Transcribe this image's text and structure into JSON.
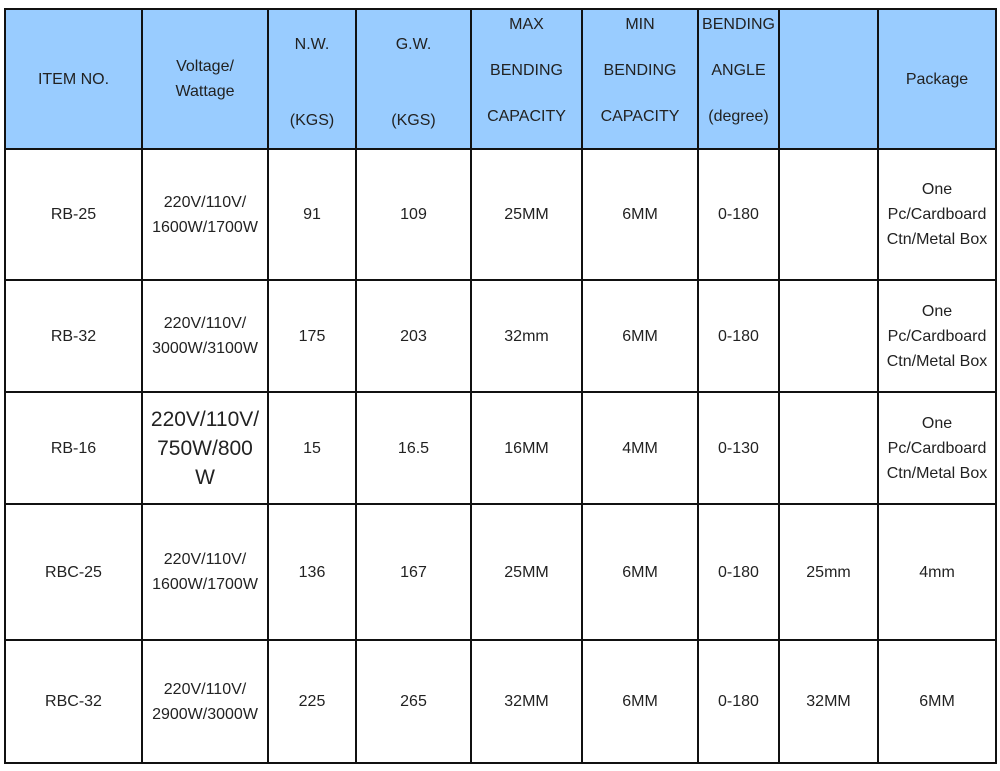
{
  "header": {
    "item_no": "ITEM NO.",
    "voltage": [
      "Voltage/",
      "Wattage"
    ],
    "nw": [
      "N.W.",
      "(KGS)"
    ],
    "gw": [
      "G.W.",
      "(KGS)"
    ],
    "max_bending": [
      "MAX",
      "BENDING",
      "CAPACITY"
    ],
    "min_bending": [
      "MIN",
      "BENDING",
      "CAPACITY"
    ],
    "bending_angle": [
      "BENDING",
      "ANGLE",
      "(degree)"
    ],
    "blank": "",
    "package": "Package"
  },
  "header_color": "#99ccff",
  "rows": [
    {
      "item": "RB-25",
      "voltage": [
        "220V/110V/",
        "1600W/1700W"
      ],
      "nw": "91",
      "gw": "109",
      "max": "25MM",
      "min": "6MM",
      "angle": "0-180",
      "extra": "",
      "package": [
        "One",
        "Pc/Cardboard",
        "Ctn/Metal Box"
      ]
    },
    {
      "item": "RB-32",
      "voltage": [
        "220V/110V/",
        "3000W/3100W"
      ],
      "nw": "175",
      "gw": "203",
      "max": "32mm",
      "min": "6MM",
      "angle": "0-180",
      "extra": "",
      "package": [
        "One",
        "Pc/Cardboard",
        "Ctn/Metal Box"
      ]
    },
    {
      "item": "RB-16",
      "voltage": [
        "220V/110V/",
        "750W/800",
        "W"
      ],
      "nw": "15",
      "gw": "16.5",
      "max": "16MM",
      "min": "4MM",
      "angle": "0-130",
      "extra": "",
      "package": [
        "One",
        "Pc/Cardboard",
        "Ctn/Metal Box"
      ]
    },
    {
      "item": "RBC-25",
      "voltage": [
        "220V/110V/",
        "1600W/1700W"
      ],
      "nw": "136",
      "gw": "167",
      "max": "25MM",
      "min": "6MM",
      "angle": "0-180",
      "extra": "25mm",
      "package": [
        "4mm"
      ]
    },
    {
      "item": "RBC-32",
      "voltage": [
        "220V/110V/",
        "2900W/3000W"
      ],
      "nw": "225",
      "gw": "265",
      "max": "32MM",
      "min": "6MM",
      "angle": "0-180",
      "extra": "32MM",
      "package": [
        "6MM"
      ]
    }
  ]
}
